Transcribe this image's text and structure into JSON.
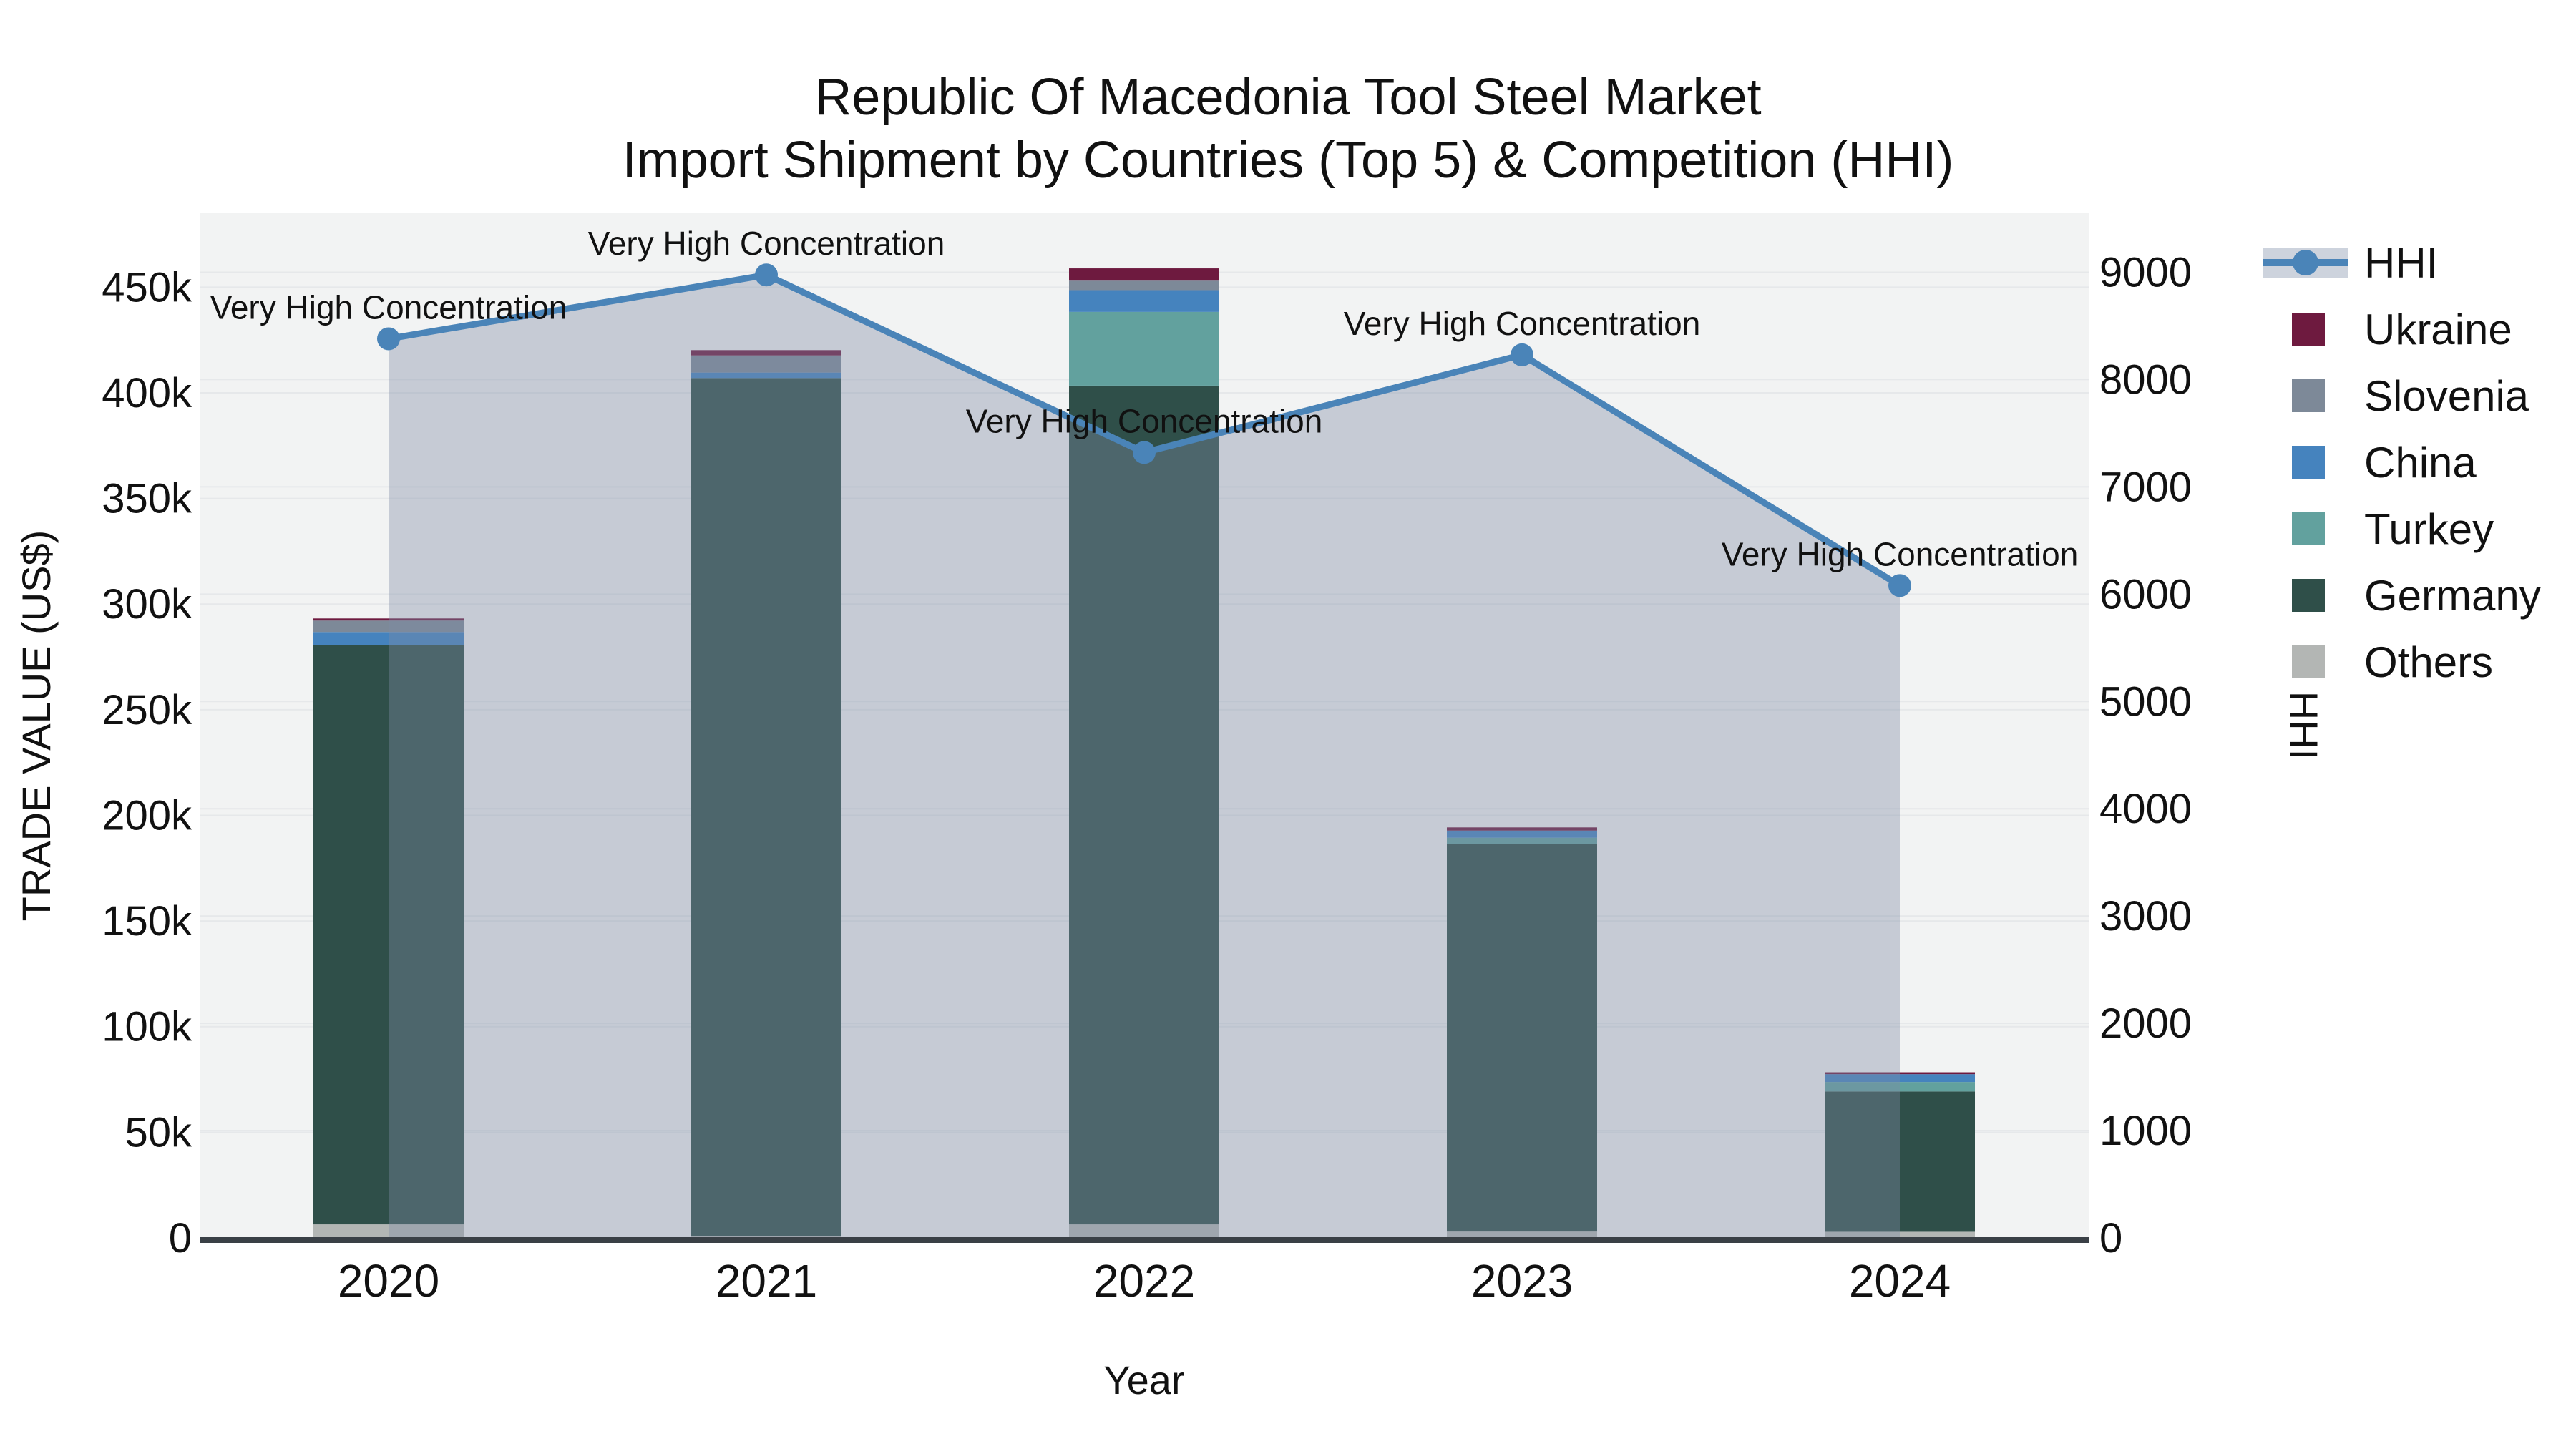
{
  "title": {
    "line1": "Republic Of Macedonia Tool Steel Market",
    "line2": "Import Shipment by Countries (Top 5) & Competition (HHI)"
  },
  "chart_data": {
    "type": "bar",
    "subtype": "stacked-bar-with-line",
    "categories": [
      "2020",
      "2021",
      "2022",
      "2023",
      "2024"
    ],
    "series": [
      {
        "name": "Ukraine",
        "color": "#6E1A3F",
        "values": [
          1000,
          2500,
          5800,
          1500,
          900
        ]
      },
      {
        "name": "Slovenia",
        "color": "#7D8998",
        "values": [
          5400,
          8100,
          4500,
          0,
          0
        ]
      },
      {
        "name": "China",
        "color": "#4583BE",
        "values": [
          6100,
          2600,
          10300,
          3400,
          3700
        ]
      },
      {
        "name": "Turkey",
        "color": "#62A19E",
        "values": [
          0,
          0,
          34900,
          3000,
          4500
        ]
      },
      {
        "name": "Germany",
        "color": "#2F4F49",
        "values": [
          274300,
          406000,
          397000,
          183400,
          66400
        ]
      },
      {
        "name": "Others",
        "color": "#B3B6B4",
        "values": [
          6400,
          1000,
          6400,
          3000,
          2900
        ]
      }
    ],
    "stack_order": [
      "Others",
      "Germany",
      "Turkey",
      "China",
      "Slovenia",
      "Ukraine"
    ],
    "totals": [
      293200,
      420200,
      458900,
      194300,
      78400
    ],
    "line_series": {
      "name": "HHI",
      "color": "#4A84B8",
      "fill_color": "rgba(125,140,165,0.38)",
      "values": [
        8380,
        8975,
        7320,
        8230,
        6080
      ],
      "axis": "right",
      "markers": true
    },
    "annotations": [
      {
        "year": "2020",
        "text": "Very High Concentration"
      },
      {
        "year": "2021",
        "text": "Very High Concentration"
      },
      {
        "year": "2022",
        "text": "Very High Concentration"
      },
      {
        "year": "2023",
        "text": "Very High Concentration"
      },
      {
        "year": "2024",
        "text": "Very High Concentration"
      }
    ],
    "x_axis": {
      "title": "Year"
    },
    "left_axis": {
      "title": "TRADE VALUE (US$)",
      "tick_labels": [
        "0",
        "50k",
        "100k",
        "150k",
        "200k",
        "250k",
        "300k",
        "350k",
        "400k",
        "450k"
      ],
      "tick_values": [
        0,
        50000,
        100000,
        150000,
        200000,
        250000,
        300000,
        350000,
        400000,
        450000
      ],
      "max": 485000
    },
    "right_axis": {
      "title": "HHI",
      "tick_labels": [
        "0",
        "1000",
        "2000",
        "3000",
        "4000",
        "5000",
        "6000",
        "7000",
        "8000",
        "9000"
      ],
      "tick_values": [
        0,
        1000,
        2000,
        3000,
        4000,
        5000,
        6000,
        7000,
        8000,
        9000
      ],
      "max": 9550
    },
    "legend": [
      {
        "label": "HHI",
        "type": "line",
        "color": "#4A84B8"
      },
      {
        "label": "Ukraine",
        "type": "swatch",
        "color": "#6E1A3F"
      },
      {
        "label": "Slovenia",
        "type": "swatch",
        "color": "#7D8998"
      },
      {
        "label": "China",
        "type": "swatch",
        "color": "#4583BE"
      },
      {
        "label": "Turkey",
        "type": "swatch",
        "color": "#62A19E"
      },
      {
        "label": "Germany",
        "type": "swatch",
        "color": "#2F4F49"
      },
      {
        "label": "Others",
        "type": "swatch",
        "color": "#B3B6B4"
      }
    ],
    "colors": {
      "plot_bg": "#F2F3F3",
      "grid": "#E6E8EA",
      "axis_line": "#3A4046",
      "hhi_legend_band": "#CDD3DD",
      "text": "#111111"
    },
    "layout_hints": {
      "grid": true,
      "legend_position": "top-right",
      "bar_relative_width": 0.4
    }
  }
}
